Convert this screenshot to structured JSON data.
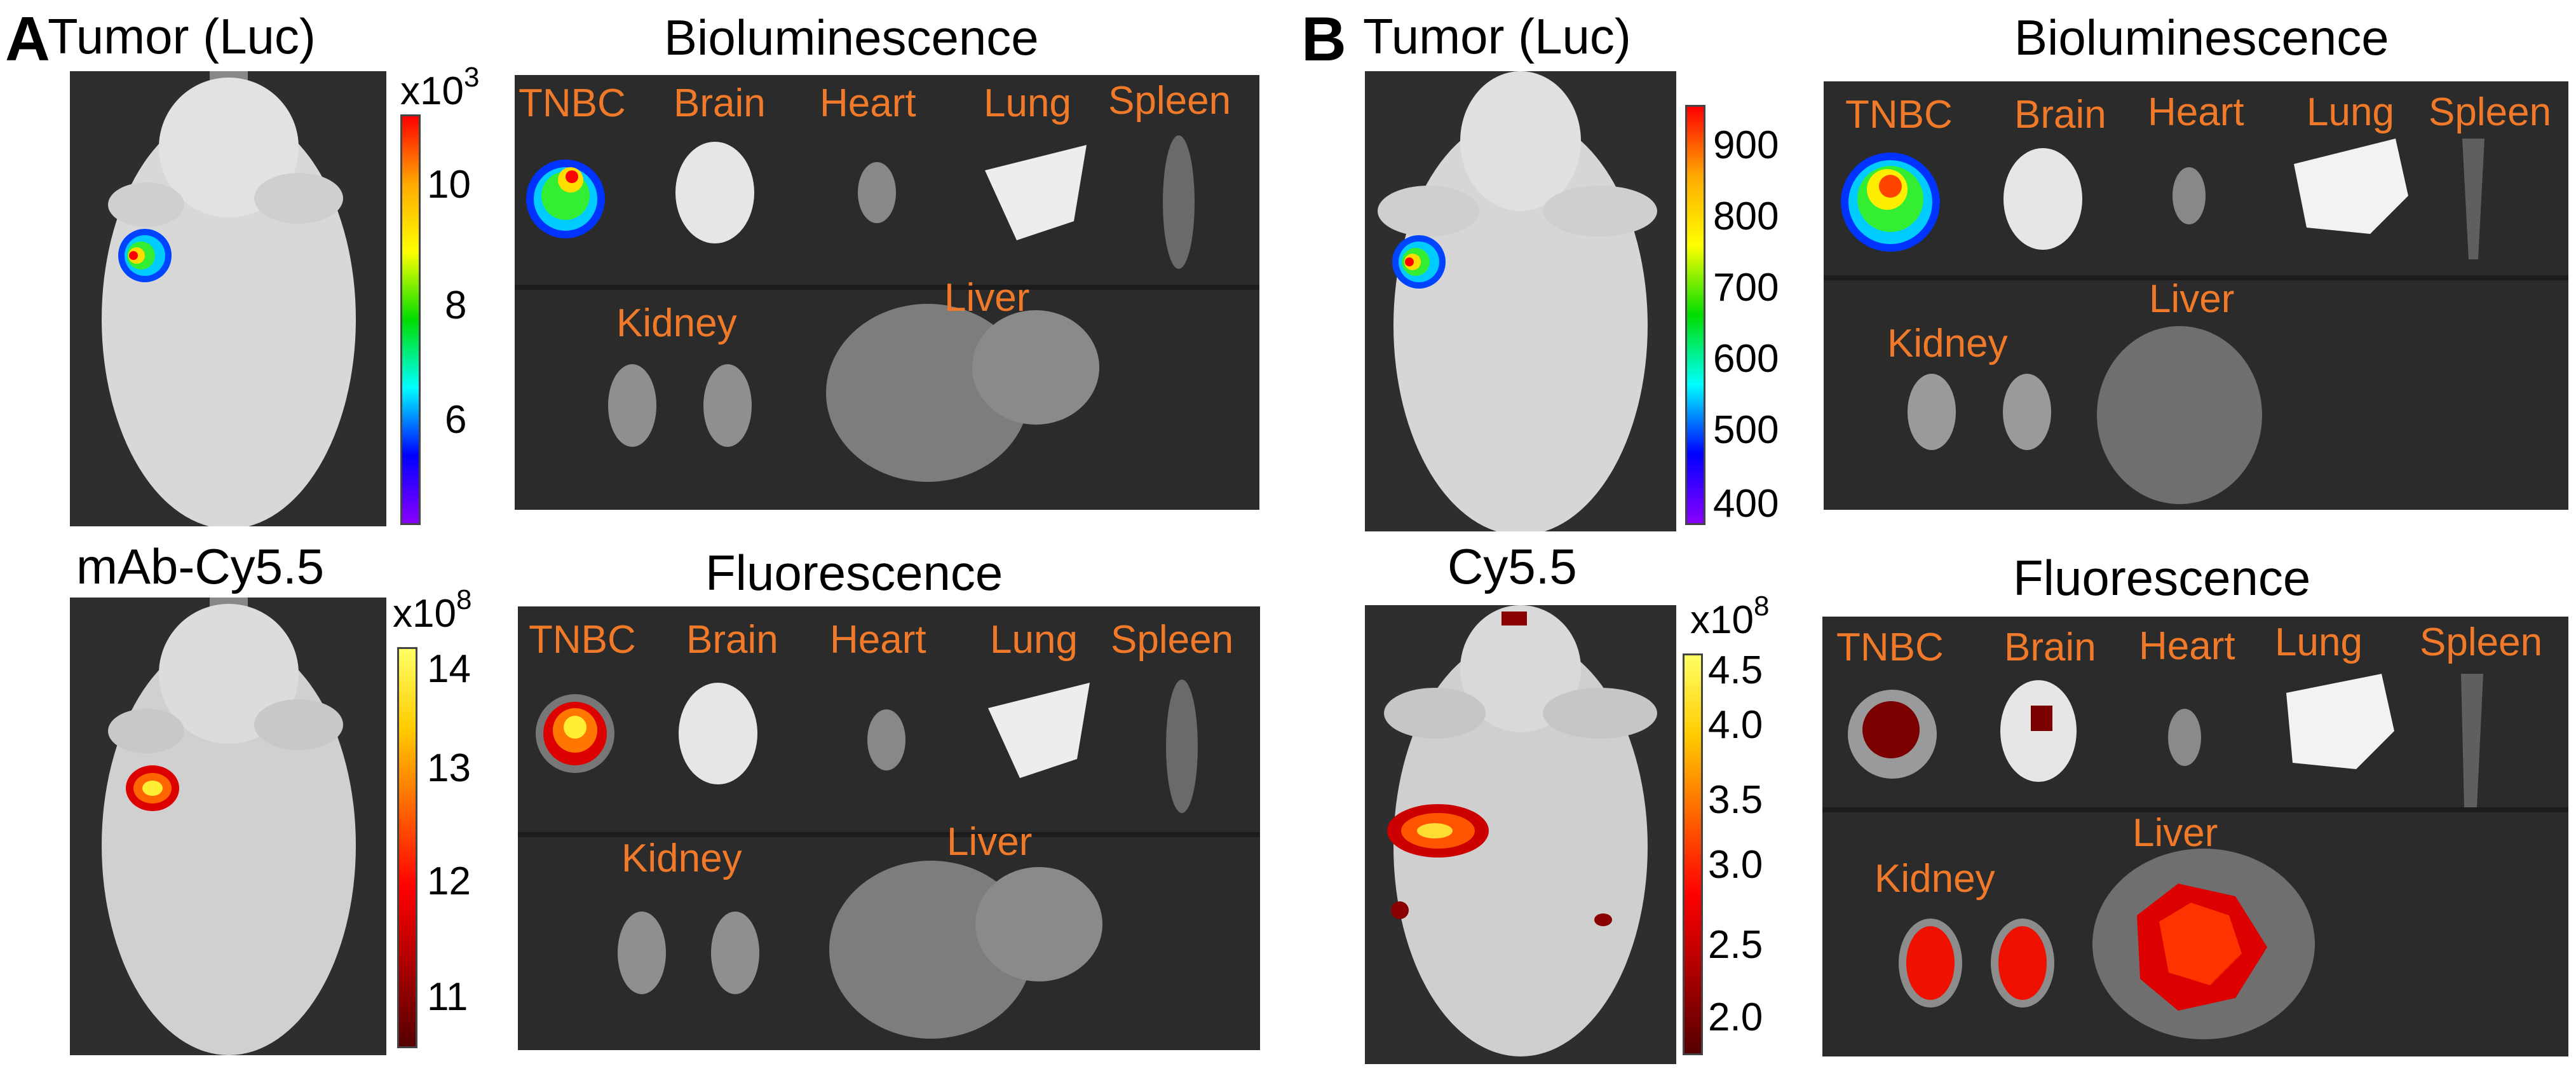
{
  "panel_a": {
    "letter": "A",
    "top": {
      "mouse_title": "Tumor (Luc)",
      "organ_title": "Bioluminescence",
      "colorbar": {
        "exponent_base": "x10",
        "exponent_power": "3",
        "ticks": [
          "10",
          "8",
          "6"
        ]
      },
      "organs": {
        "tnbc": "TNBC",
        "brain": "Brain",
        "heart": "Heart",
        "lung": "Lung",
        "spleen": "Spleen",
        "kidney": "Kidney",
        "liver": "Liver"
      }
    },
    "bottom": {
      "mouse_title": "mAb-Cy5.5",
      "organ_title": "Fluorescence",
      "colorbar": {
        "exponent_base": "x10",
        "exponent_power": "8",
        "ticks": [
          "14",
          "13",
          "12",
          "11"
        ]
      },
      "organs": {
        "tnbc": "TNBC",
        "brain": "Brain",
        "heart": "Heart",
        "lung": "Lung",
        "spleen": "Spleen",
        "kidney": "Kidney",
        "liver": "Liver"
      }
    }
  },
  "panel_b": {
    "letter": "B",
    "top": {
      "mouse_title": "Tumor (Luc)",
      "organ_title": "Bioluminescence",
      "colorbar": {
        "ticks": [
          "900",
          "800",
          "700",
          "600",
          "500",
          "400"
        ]
      },
      "organs": {
        "tnbc": "TNBC",
        "brain": "Brain",
        "heart": "Heart",
        "lung": "Lung",
        "spleen": "Spleen",
        "kidney": "Kidney",
        "liver": "Liver"
      }
    },
    "bottom": {
      "mouse_title": "Cy5.5",
      "organ_title": "Fluorescence",
      "colorbar": {
        "exponent_base": "x10",
        "exponent_power": "8",
        "ticks": [
          "4.5",
          "4.0",
          "3.5",
          "3.0",
          "2.5",
          "2.0"
        ]
      },
      "organs": {
        "tnbc": "TNBC",
        "brain": "Brain",
        "heart": "Heart",
        "lung": "Lung",
        "spleen": "Spleen",
        "kidney": "Kidney",
        "liver": "Liver"
      }
    }
  },
  "colors": {
    "organ_label": "#f07a2a",
    "photo_background": "#2b2b2b",
    "rainbow_scale": [
      "#ff0000",
      "#ffaa00",
      "#ffff00",
      "#00dd00",
      "#00ffff",
      "#0000ff",
      "#8a00ff"
    ],
    "heat_scale": [
      "#ffff66",
      "#ffcc00",
      "#ff6600",
      "#ff0000",
      "#aa0000",
      "#550000"
    ]
  }
}
